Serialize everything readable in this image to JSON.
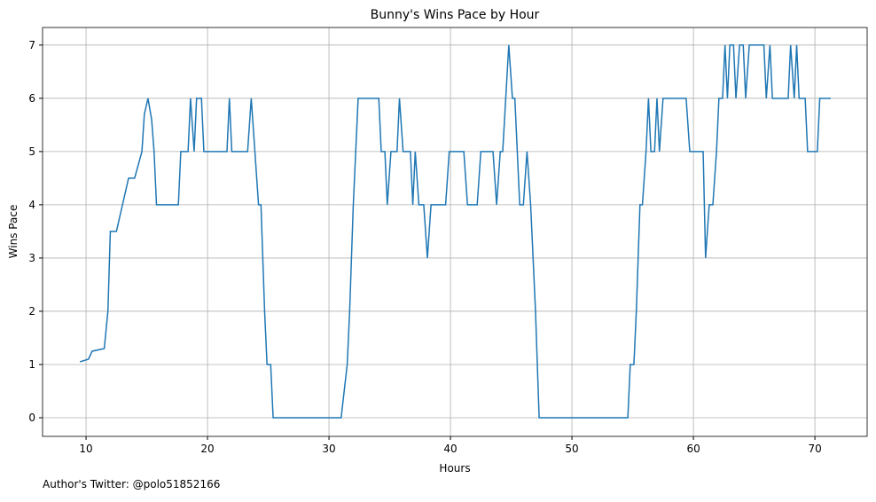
{
  "chart_data": {
    "type": "line",
    "title": "Bunny's Wins Pace by Hour",
    "xlabel": "Hours",
    "ylabel": "Wins Pace",
    "footnote": "Author's Twitter: @polo51852166",
    "x": [
      9.5,
      10.2,
      10.5,
      11.5,
      11.8,
      12,
      12.5,
      13.5,
      14,
      14.6,
      14.8,
      15.1,
      15.4,
      15.6,
      15.8,
      17.6,
      17.8,
      18.4,
      18.6,
      18.9,
      19.1,
      19.5,
      19.7,
      21.6,
      21.8,
      22,
      23.3,
      23.6,
      23.9,
      24.2,
      24.4,
      24.7,
      24.9,
      25.2,
      25.4,
      31.0,
      31.5,
      31.7,
      32,
      32.2,
      32.4,
      34.1,
      34.3,
      34.6,
      34.8,
      35.1,
      35.6,
      35.8,
      36.1,
      36.7,
      36.9,
      37.1,
      37.4,
      37.8,
      38.1,
      38.4,
      39.6,
      39.9,
      41.1,
      41.4,
      42.2,
      42.5,
      43.5,
      43.8,
      44.1,
      44.3,
      44.8,
      45.1,
      45.3,
      45.7,
      46.0,
      46.3,
      46.6,
      47.0,
      47.3,
      54.6,
      54.8,
      55.1,
      55.3,
      55.6,
      55.8,
      56.1,
      56.3,
      56.5,
      56.8,
      57.0,
      57.2,
      57.5,
      59.4,
      59.7,
      60.1,
      60.8,
      61.0,
      61.3,
      61.6,
      61.9,
      62.1,
      62.4,
      62.6,
      62.8,
      63.0,
      63.3,
      63.5,
      63.8,
      64.1,
      64.3,
      64.6,
      65.8,
      66.0,
      66.3,
      66.5,
      67.8,
      68.0,
      68.3,
      68.5,
      68.7,
      69.2,
      69.4,
      70.2,
      70.4,
      71.3
    ],
    "series": [
      {
        "name": "Wins Pace",
        "color": "#1f77b4",
        "values": [
          1.05,
          1.1,
          1.25,
          1.3,
          2.0,
          3.5,
          3.5,
          4.5,
          4.5,
          5.0,
          5.7,
          6.0,
          5.6,
          5.0,
          4.0,
          4.0,
          5.0,
          5.0,
          6.0,
          5.0,
          6.0,
          6.0,
          5.0,
          5.0,
          6.0,
          5.0,
          5.0,
          6.0,
          5.0,
          4.0,
          4.0,
          2.0,
          1.0,
          1.0,
          0,
          0,
          1.0,
          2.0,
          4.0,
          5.0,
          6.0,
          6.0,
          5.0,
          5.0,
          4.0,
          5.0,
          5.0,
          6.0,
          5.0,
          5.0,
          4.0,
          5.0,
          4.0,
          4.0,
          3.0,
          4.0,
          4.0,
          5.0,
          5.0,
          4.0,
          4.0,
          5.0,
          5.0,
          4.0,
          5.0,
          5.0,
          7.0,
          6.0,
          6.0,
          4.0,
          4.0,
          5.0,
          4.0,
          2.0,
          0,
          0,
          1.0,
          1.0,
          2.0,
          4.0,
          4.0,
          5.0,
          6.0,
          5.0,
          5.0,
          6.0,
          5.0,
          6.0,
          6.0,
          5.0,
          5.0,
          5.0,
          3.0,
          4.0,
          4.0,
          5.0,
          6.0,
          6.0,
          7.0,
          6.0,
          7.0,
          7.0,
          6.0,
          7.0,
          7.0,
          6.0,
          7.0,
          7.0,
          6.0,
          7.0,
          6.0,
          6.0,
          7.0,
          6.0,
          7.0,
          6.0,
          6.0,
          5.0,
          5.0,
          6.0,
          6.0
        ]
      }
    ],
    "xlim": [
      6.42,
      74.3
    ],
    "ylim": [
      -0.35,
      7.33
    ],
    "xticks": [
      10,
      20,
      30,
      40,
      50,
      60,
      70
    ],
    "yticks": [
      0,
      1,
      2,
      3,
      4,
      5,
      6,
      7
    ],
    "grid": true
  }
}
